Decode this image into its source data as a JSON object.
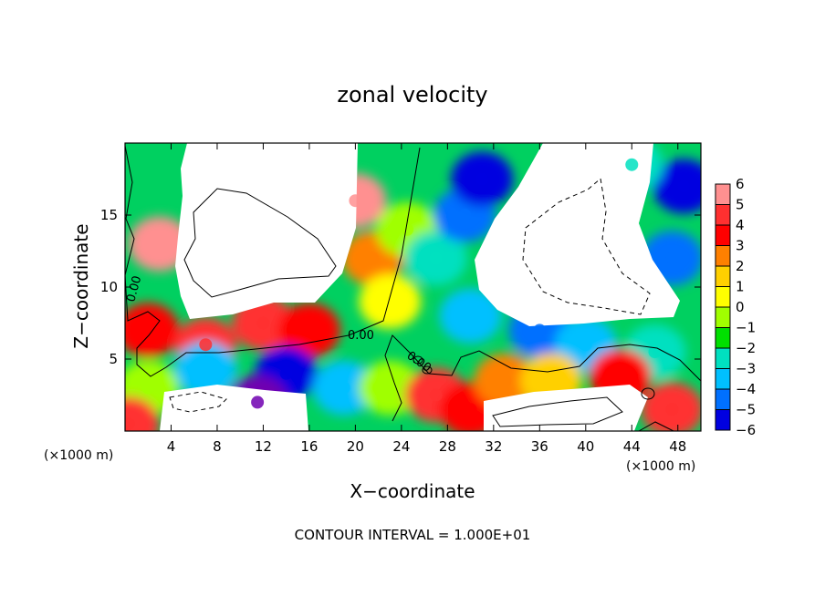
{
  "chart_data": {
    "type": "heatmap",
    "title": "zonal velocity",
    "xlabel": "X−coordinate",
    "ylabel": "Z−coordinate",
    "x_unit_label": "(×1000 m)",
    "y_unit_label": "(×1000 m)",
    "xlim": [
      0,
      50
    ],
    "ylim": [
      0,
      20
    ],
    "x_ticks": [
      4,
      8,
      12,
      16,
      20,
      24,
      28,
      32,
      36,
      40,
      44,
      48
    ],
    "x_tick_labels": [
      "4",
      "8",
      "12",
      "16",
      "20",
      "24",
      "28",
      "32",
      "36",
      "40",
      "44",
      "48"
    ],
    "y_ticks": [
      5,
      10,
      15
    ],
    "y_tick_labels": [
      "5",
      "10",
      "15"
    ],
    "colorbar": {
      "levels": [
        6,
        5,
        4,
        3,
        2,
        1,
        0,
        -1,
        -2,
        -3,
        -4,
        -5,
        -6
      ],
      "labels": [
        "6",
        "5",
        "4",
        "3",
        "2",
        "1",
        "0",
        "−1",
        "−2",
        "−3",
        "−4",
        "−5",
        "−6"
      ],
      "colors": [
        "#ff9090",
        "#ff3030",
        "#ff0000",
        "#ff8000",
        "#ffd000",
        "#ffff00",
        "#a0ff00",
        "#00e000",
        "#00e0c0",
        "#00c0ff",
        "#0070ff",
        "#0000e0",
        "#7000b0"
      ]
    },
    "contour_labels": [
      "0.00",
      "0.00",
      "0.00"
    ],
    "footer": "CONTOUR INTERVAL = 1.000E+01",
    "features": [
      {
        "x": 3,
        "z": 13,
        "value": 6
      },
      {
        "x": 2,
        "z": 7,
        "value": 4
      },
      {
        "x": 7,
        "z": 6,
        "value": 5
      },
      {
        "x": 12,
        "z": 7.5,
        "value": 5
      },
      {
        "x": 16,
        "z": 7,
        "value": 4
      },
      {
        "x": 20,
        "z": 16,
        "value": 6
      },
      {
        "x": 21.5,
        "z": 12,
        "value": 3
      },
      {
        "x": 23,
        "z": 9,
        "value": 1
      },
      {
        "x": 24.5,
        "z": 14,
        "value": 0
      },
      {
        "x": 27,
        "z": 12,
        "value": -2
      },
      {
        "x": 29.5,
        "z": 15,
        "value": -4
      },
      {
        "x": 31,
        "z": 17.5,
        "value": -5
      },
      {
        "x": 30,
        "z": 8,
        "value": -3
      },
      {
        "x": 36,
        "z": 7,
        "value": -4
      },
      {
        "x": 40,
        "z": 6,
        "value": -3
      },
      {
        "x": 46,
        "z": 5.5,
        "value": -2
      },
      {
        "x": 47.5,
        "z": 12,
        "value": -4
      },
      {
        "x": 48.5,
        "z": 17,
        "value": -5
      },
      {
        "x": 44,
        "z": 18.5,
        "value": -2
      },
      {
        "x": 7,
        "z": 4.3,
        "value": -3
      },
      {
        "x": 14,
        "z": 4,
        "value": -5
      },
      {
        "x": 19,
        "z": 3,
        "value": -3
      },
      {
        "x": 23,
        "z": 3,
        "value": 0
      },
      {
        "x": 27,
        "z": 2.5,
        "value": 5
      },
      {
        "x": 30,
        "z": 1.5,
        "value": 4
      },
      {
        "x": 33,
        "z": 3.5,
        "value": 3
      },
      {
        "x": 37,
        "z": 3.5,
        "value": 2
      },
      {
        "x": 43,
        "z": 3.8,
        "value": 4
      },
      {
        "x": 47.5,
        "z": 1.5,
        "value": 5
      },
      {
        "x": 11.5,
        "z": 2,
        "value": -6
      },
      {
        "x": 2,
        "z": 3,
        "value": 0
      },
      {
        "x": 0.3,
        "z": 0.5,
        "value": 5
      }
    ]
  }
}
